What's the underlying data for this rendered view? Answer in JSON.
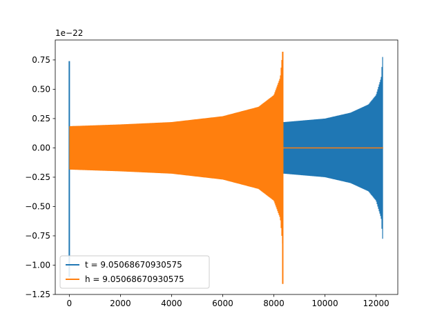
{
  "chart_data": {
    "type": "line",
    "title": "",
    "xlabel": "",
    "ylabel": "",
    "y_scale_multiplier": "1e−22",
    "xlim": [
      -550,
      12850
    ],
    "ylim": [
      -1.25,
      0.92
    ],
    "x_ticks": [
      0,
      2000,
      4000,
      6000,
      8000,
      10000,
      12000
    ],
    "x_tick_labels": [
      "0",
      "2000",
      "4000",
      "6000",
      "8000",
      "10000",
      "12000"
    ],
    "y_ticks": [
      -1.25,
      -1.0,
      -0.75,
      -0.5,
      -0.25,
      0.0,
      0.25,
      0.5,
      0.75
    ],
    "y_tick_labels": [
      "−1.25",
      "−1.00",
      "−0.75",
      "−0.50",
      "−0.25",
      "0.00",
      "0.25",
      "0.50",
      "0.75"
    ],
    "grid": false,
    "legend_position": "lower-left",
    "series": [
      {
        "name": "t = 9.05068670930575",
        "color": "#1f77b4",
        "x_range": [
          0,
          12280
        ],
        "initial_spike": {
          "x": 0,
          "max": 0.74,
          "min": -1.1
        },
        "envelope": [
          {
            "x": 0,
            "amp": 0.185
          },
          {
            "x": 2000,
            "amp": 0.19
          },
          {
            "x": 8400,
            "amp": 0.22
          },
          {
            "x": 10000,
            "amp": 0.25
          },
          {
            "x": 11000,
            "amp": 0.3
          },
          {
            "x": 11700,
            "amp": 0.37
          },
          {
            "x": 12000,
            "amp": 0.45
          },
          {
            "x": 12200,
            "amp": 0.6
          },
          {
            "x": 12270,
            "amp": 0.82
          }
        ]
      },
      {
        "name": "h = 9.05068670930575",
        "color": "#ff7f0e",
        "x_range": [
          0,
          12280
        ],
        "envelope": [
          {
            "x": 0,
            "amp": 0.185
          },
          {
            "x": 2000,
            "amp": 0.2
          },
          {
            "x": 4000,
            "amp": 0.22
          },
          {
            "x": 6000,
            "amp": 0.27
          },
          {
            "x": 7400,
            "amp": 0.35
          },
          {
            "x": 8000,
            "amp": 0.45
          },
          {
            "x": 8250,
            "amp": 0.6
          },
          {
            "x": 8340,
            "amp": 0.82
          }
        ],
        "merger": {
          "x": 8350,
          "max": 0.82,
          "min": -1.16
        },
        "after_merger": 0.0
      }
    ]
  }
}
